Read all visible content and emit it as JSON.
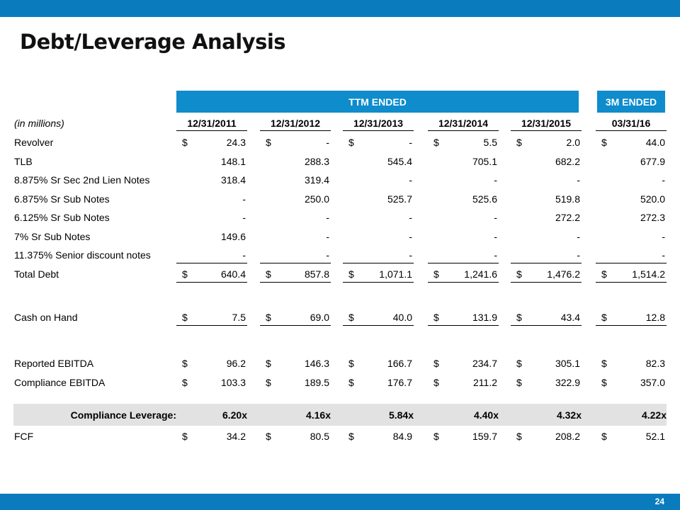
{
  "header": {
    "title": "Debt/Leverage Analysis"
  },
  "table": {
    "group_ttm": "TTM ENDED",
    "group_3m": "3M ENDED",
    "units_label": "(in millions)",
    "columns": [
      "12/31/2011",
      "12/31/2012",
      "12/31/2013",
      "12/31/2014",
      "12/31/2015",
      "03/31/16"
    ],
    "currency_symbol": "$",
    "rows": [
      {
        "label": "Revolver",
        "values": [
          "24.3",
          "-",
          "-",
          "5.5",
          "2.0",
          "44.0"
        ]
      },
      {
        "label": "TLB",
        "values": [
          "148.1",
          "288.3",
          "545.4",
          "705.1",
          "682.2",
          "677.9"
        ]
      },
      {
        "label": "8.875% Sr Sec 2nd Lien Notes",
        "values": [
          "318.4",
          "319.4",
          "-",
          "-",
          "-",
          "-"
        ]
      },
      {
        "label": "6.875% Sr Sub Notes",
        "values": [
          "-",
          "250.0",
          "525.7",
          "525.6",
          "519.8",
          "520.0"
        ]
      },
      {
        "label": "6.125% Sr Sub Notes",
        "values": [
          "-",
          "-",
          "-",
          "-",
          "272.2",
          "272.3"
        ]
      },
      {
        "label": "7% Sr Sub Notes",
        "values": [
          "149.6",
          "-",
          "-",
          "-",
          "-",
          "-"
        ]
      },
      {
        "label": "11.375% Senior discount notes",
        "values": [
          "-",
          "-",
          "-",
          "-",
          "-",
          "-"
        ]
      },
      {
        "label": "Total Debt",
        "values": [
          "640.4",
          "857.8",
          "1,071.1",
          "1,241.6",
          "1,476.2",
          "1,514.2"
        ]
      },
      {
        "label": "Cash on Hand",
        "values": [
          "7.5",
          "69.0",
          "40.0",
          "131.9",
          "43.4",
          "12.8"
        ]
      },
      {
        "label": "Reported EBITDA",
        "values": [
          "96.2",
          "146.3",
          "166.7",
          "234.7",
          "305.1",
          "82.3"
        ]
      },
      {
        "label": "Compliance EBITDA",
        "values": [
          "103.3",
          "189.5",
          "176.7",
          "211.2",
          "322.9",
          "357.0"
        ]
      }
    ],
    "leverage": {
      "label": "Compliance Leverage:",
      "values": [
        "6.20x",
        "4.16x",
        "5.84x",
        "4.40x",
        "4.32x",
        "4.22x"
      ]
    },
    "fcf": {
      "label": "FCF",
      "values": [
        "34.2",
        "80.5",
        "84.9",
        "159.7",
        "208.2",
        "52.1"
      ]
    }
  },
  "footer": {
    "page_number": "24"
  },
  "colors": {
    "brand_blue": "#0a7bbd",
    "header_blue": "#0e8ccc",
    "band_gray": "#e2e2e2"
  }
}
